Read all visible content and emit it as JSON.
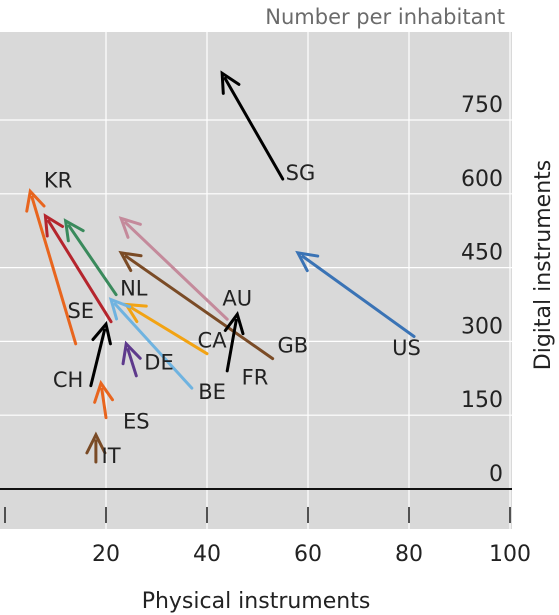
{
  "chart_data": {
    "type": "scatter",
    "subtitle": "Number per inhabitant",
    "xlabel": "Physical instruments",
    "ylabel": "Digital instruments",
    "xlim": [
      0,
      100
    ],
    "ylim": [
      -60,
      905
    ],
    "xticks": [
      20,
      40,
      60,
      80,
      100
    ],
    "yticks": [
      0,
      150,
      300,
      450,
      600,
      750
    ],
    "grid": true,
    "legend": "none",
    "series": [
      {
        "name": "SG",
        "color": "#000000",
        "from": [
          55,
          630
        ],
        "to": [
          43,
          845
        ]
      },
      {
        "name": "US",
        "color": "#3a73b5",
        "from": [
          81,
          310
        ],
        "to": [
          58,
          480
        ]
      },
      {
        "name": "KR",
        "color": "#e8651e",
        "from": [
          14,
          295
        ],
        "to": [
          5,
          605
        ]
      },
      {
        "name": "CH",
        "color": "#000000",
        "from": [
          17,
          210
        ],
        "to": [
          20,
          335
        ]
      },
      {
        "name": "SE",
        "color": "#b5252d",
        "from": [
          21,
          340
        ],
        "to": [
          8,
          555
        ]
      },
      {
        "name": "NL",
        "color": "#3a8a5c",
        "from": [
          22,
          395
        ],
        "to": [
          12,
          545
        ]
      },
      {
        "name": "AU",
        "color": "#c48a9b",
        "from": [
          44,
          345
        ],
        "to": [
          23,
          550
        ]
      },
      {
        "name": "GB",
        "color": "#7a4b26",
        "from": [
          53,
          265
        ],
        "to": [
          23,
          480
        ]
      },
      {
        "name": "CA",
        "color": "#f2a313",
        "from": [
          40,
          275
        ],
        "to": [
          24,
          375
        ]
      },
      {
        "name": "BE",
        "color": "#6fb3e0",
        "from": [
          37,
          205
        ],
        "to": [
          21,
          385
        ]
      },
      {
        "name": "FR",
        "color": "#000000",
        "from": [
          44,
          240
        ],
        "to": [
          46,
          355
        ]
      },
      {
        "name": "DE",
        "color": "#5e3a8c",
        "from": [
          26,
          230
        ],
        "to": [
          24,
          295
        ]
      },
      {
        "name": "ES",
        "color": "#e8651e",
        "from": [
          20,
          145
        ],
        "to": [
          19,
          215
        ]
      },
      {
        "name": "IT",
        "color": "#7a4b26",
        "from": [
          18,
          55
        ],
        "to": [
          18,
          110
        ]
      }
    ],
    "labels": [
      {
        "text": "SG",
        "x": 58.5,
        "y": 640
      },
      {
        "text": "US",
        "x": 79.5,
        "y": 285
      },
      {
        "text": "KR",
        "x": 10.5,
        "y": 625
      },
      {
        "text": "CH",
        "x": 12.5,
        "y": 220
      },
      {
        "text": "SE",
        "x": 15,
        "y": 360
      },
      {
        "text": "NL",
        "x": 25.5,
        "y": 405
      },
      {
        "text": "AU",
        "x": 46,
        "y": 385
      },
      {
        "text": "GB",
        "x": 57,
        "y": 290
      },
      {
        "text": "CA",
        "x": 41,
        "y": 300
      },
      {
        "text": "BE",
        "x": 41,
        "y": 195
      },
      {
        "text": "FR",
        "x": 49.5,
        "y": 225
      },
      {
        "text": "DE",
        "x": 30.5,
        "y": 255
      },
      {
        "text": "ES",
        "x": 26,
        "y": 135
      },
      {
        "text": "IT",
        "x": 21,
        "y": 65
      }
    ]
  }
}
